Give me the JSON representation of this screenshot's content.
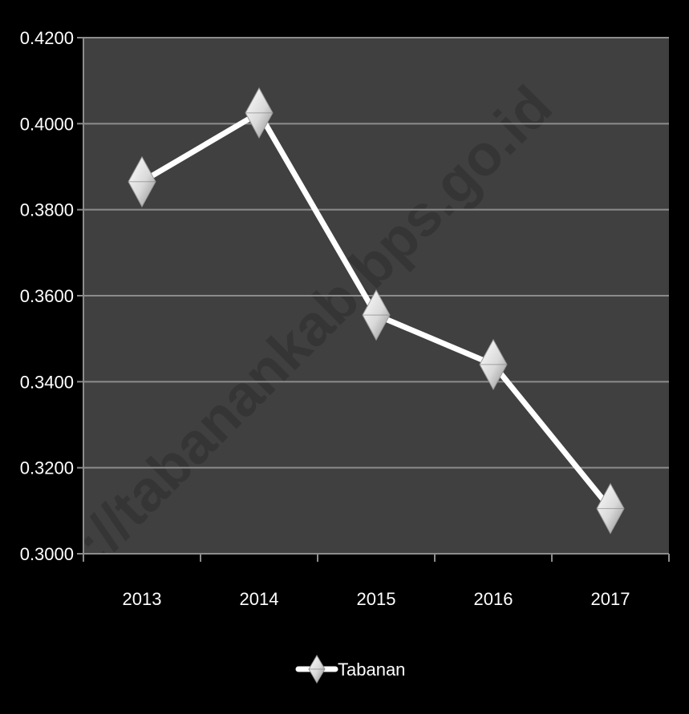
{
  "chart_data": {
    "type": "line",
    "categories": [
      "2013",
      "2014",
      "2015",
      "2016",
      "2017"
    ],
    "series": [
      {
        "name": "Tabanan",
        "values": [
          0.3865,
          0.4025,
          0.3555,
          0.344,
          0.3105
        ]
      }
    ],
    "ylim": [
      0.3,
      0.42
    ],
    "yticks": [
      "0.3000",
      "0.3200",
      "0.3400",
      "0.3600",
      "0.3800",
      "0.4000",
      "0.4200"
    ],
    "grid": true,
    "legend": "bottom",
    "watermark": "http://tabanankab.bps.go.id",
    "colors": {
      "page_background": "#000000",
      "plot_background": "#404040",
      "gridline": "#8c8c8c",
      "line": "#ffffff",
      "marker": "#e8e8e8"
    }
  }
}
